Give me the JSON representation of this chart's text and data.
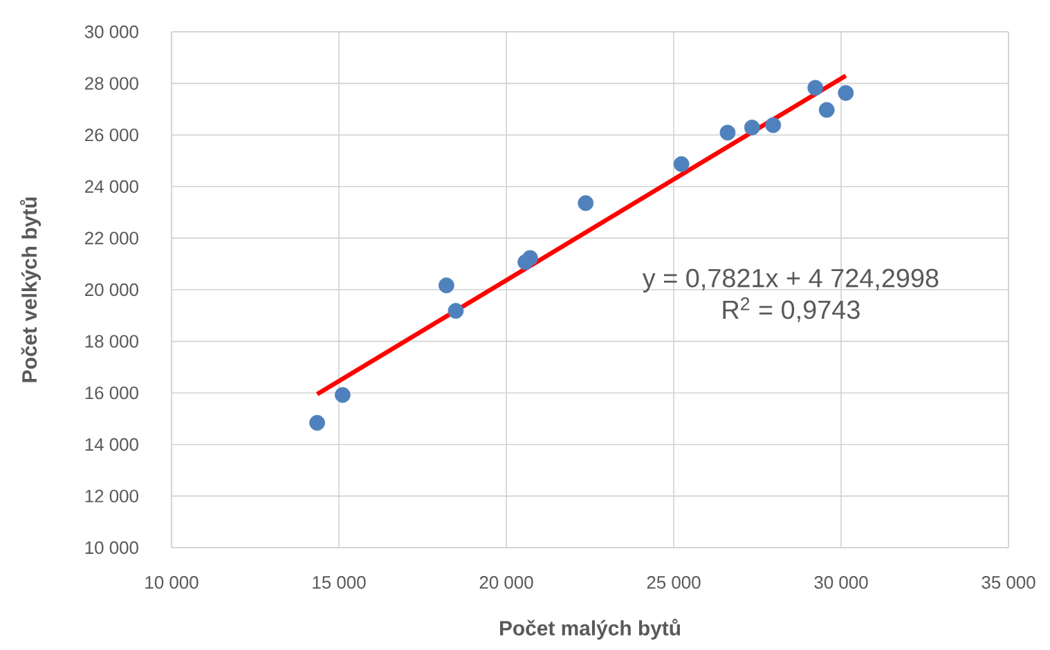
{
  "chart_data": {
    "type": "scatter",
    "xlabel": "Počet malých bytů",
    "ylabel": "Počet velkých bytů",
    "xlim": [
      10000,
      35000
    ],
    "ylim": [
      10000,
      30000
    ],
    "xticks": [
      {
        "value": 10000,
        "label": "10 000"
      },
      {
        "value": 15000,
        "label": "15 000"
      },
      {
        "value": 20000,
        "label": "20 000"
      },
      {
        "value": 25000,
        "label": "25 000"
      },
      {
        "value": 30000,
        "label": "30 000"
      },
      {
        "value": 35000,
        "label": "35 000"
      }
    ],
    "yticks": [
      {
        "value": 10000,
        "label": "10 000"
      },
      {
        "value": 12000,
        "label": "12 000"
      },
      {
        "value": 14000,
        "label": "14 000"
      },
      {
        "value": 16000,
        "label": "16 000"
      },
      {
        "value": 18000,
        "label": "18 000"
      },
      {
        "value": 20000,
        "label": "20 000"
      },
      {
        "value": 22000,
        "label": "22 000"
      },
      {
        "value": 24000,
        "label": "24 000"
      },
      {
        "value": 26000,
        "label": "26 000"
      },
      {
        "value": 28000,
        "label": "28 000"
      },
      {
        "value": 30000,
        "label": "30 000"
      }
    ],
    "grid": true,
    "marker": "circle",
    "series": [
      {
        "type": "scatter",
        "color": "#4f81bd",
        "x": [
          14350,
          15110,
          18210,
          18490,
          20570,
          20710,
          22370,
          25230,
          26610,
          27340,
          27970,
          29230,
          29570,
          30140
        ],
        "values": [
          14840,
          15920,
          20170,
          19180,
          21070,
          21230,
          23360,
          24870,
          26090,
          26290,
          26380,
          27830,
          26970,
          27630
        ]
      },
      {
        "type": "line",
        "marker": "none",
        "color": "#ff0000",
        "x": [
          14350,
          30140
        ],
        "values": [
          15950,
          28300
        ]
      }
    ],
    "annotations": [
      "y = 0,7821x + 4 724,2998",
      "R$^{2}$ = 0,9743"
    ]
  }
}
